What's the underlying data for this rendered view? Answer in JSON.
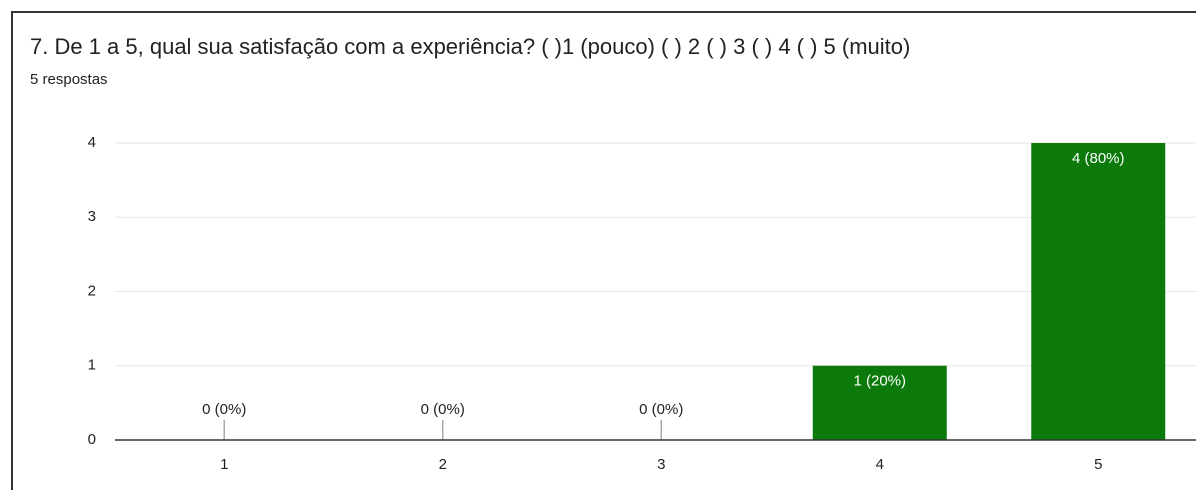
{
  "chart_data": {
    "type": "bar",
    "title": "7. De 1 a 5, qual sua satisfação com a experiência? ( )1 (pouco)  ( ) 2  ( ) 3  ( ) 4  ( ) 5 (muito)",
    "subtitle": "5 respostas",
    "categories": [
      "1",
      "2",
      "3",
      "4",
      "5"
    ],
    "values": [
      0,
      0,
      0,
      1,
      4
    ],
    "value_labels": [
      "0 (0%)",
      "0 (0%)",
      "0 (0%)",
      "1 (20%)",
      "4 (80%)"
    ],
    "color": "#0b7a0b",
    "ylim": [
      0,
      4
    ],
    "yticks": [
      0,
      1,
      2,
      3,
      4
    ],
    "grid": true
  }
}
